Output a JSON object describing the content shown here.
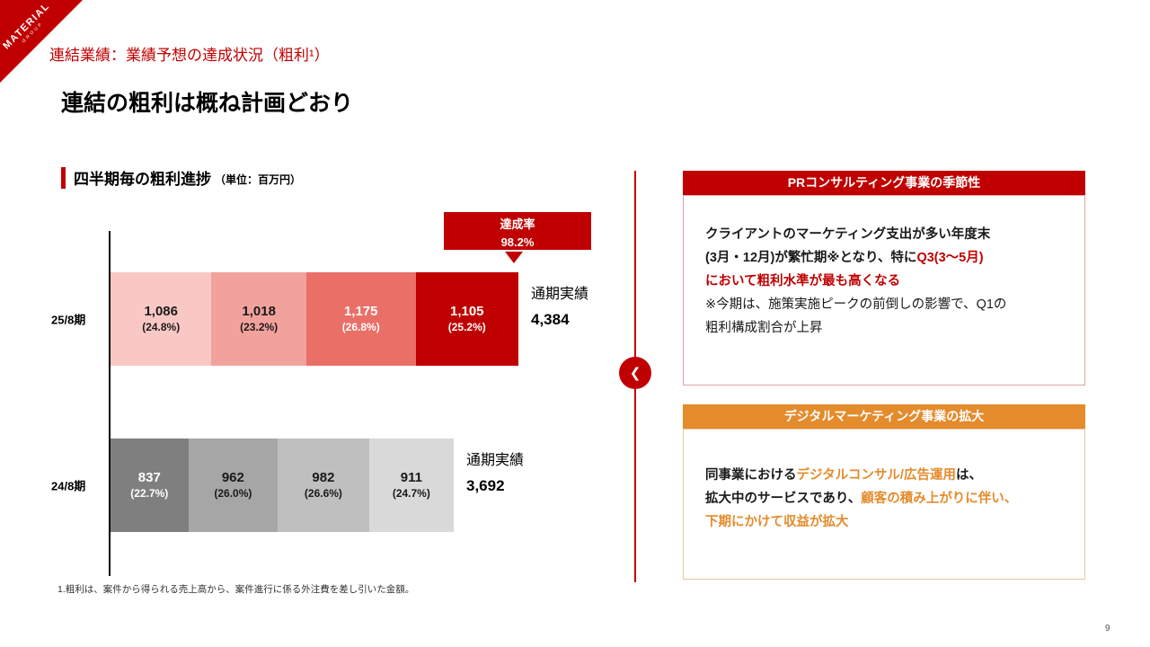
{
  "logo": {
    "name": "MATERIAL",
    "sub": "GROUP"
  },
  "page_number": "9",
  "icons": {
    "chevron_left": "❮"
  },
  "header": {
    "breadcrumb": "連結業績：業績予想の達成状況（粗利¹）",
    "title": "連結の粗利は概ね計画どおり"
  },
  "chart_section": {
    "heading": "四半期毎の粗利進捗",
    "unit_note": "（単位：百万円）",
    "achievement_badge": {
      "label": "達成率",
      "value": "98.2%"
    },
    "footnote": "1.粗利は、案件から得られる売上高から、案件進行に係る外注費を差し引いた金額。"
  },
  "chart_data": {
    "type": "bar",
    "orientation": "horizontal-stacked",
    "title": "四半期毎の粗利進捗",
    "unit": "百万円",
    "axis_max": 4384,
    "rows": [
      {
        "label": "25/8期",
        "total_label": "通期実績",
        "total_display": "4,384",
        "total_value": 4384,
        "segments": [
          {
            "display": "1,086",
            "pct": "(24.8%)",
            "value": 1086,
            "color": "#f9c8c5",
            "text_color": "#1a1a1a"
          },
          {
            "display": "1,018",
            "pct": "(23.2%)",
            "value": 1018,
            "color": "#f2a29d",
            "text_color": "#1a1a1a"
          },
          {
            "display": "1,175",
            "pct": "(26.8%)",
            "value": 1175,
            "color": "#ea6f66",
            "text_color": "#ffffff"
          },
          {
            "display": "1,105",
            "pct": "(25.2%)",
            "value": 1105,
            "color": "#c00000",
            "text_color": "#ffffff"
          }
        ]
      },
      {
        "label": "24/8期",
        "total_label": "通期実績",
        "total_display": "3,692",
        "total_value": 3692,
        "segments": [
          {
            "display": "837",
            "pct": "(22.7%)",
            "value": 837,
            "color": "#7f7f7f",
            "text_color": "#ffffff"
          },
          {
            "display": "962",
            "pct": "(26.0%)",
            "value": 962,
            "color": "#a6a6a6",
            "text_color": "#1a1a1a"
          },
          {
            "display": "982",
            "pct": "(26.6%)",
            "value": 982,
            "color": "#bfbfbf",
            "text_color": "#1a1a1a"
          },
          {
            "display": "911",
            "pct": "(24.7%)",
            "value": 911,
            "color": "#d9d9d9",
            "text_color": "#1a1a1a"
          }
        ]
      }
    ]
  },
  "callouts": [
    {
      "title": "PRコンサルティング事業の季節性",
      "accent_color": "#c00000",
      "border_color": "#e2a3a3",
      "lines": [
        [
          {
            "t": "クライアントのマーケティング支出が多い年度末",
            "c": "#1a1a1a",
            "b": true
          }
        ],
        [
          {
            "t": "(3月・12月)が繁忙期※となり、特に",
            "c": "#1a1a1a",
            "b": true
          },
          {
            "t": "Q3(3～5月)",
            "c": "#c00000",
            "b": true
          }
        ],
        [
          {
            "t": "において粗利水準が最も高くなる",
            "c": "#c00000",
            "b": true
          }
        ],
        [
          {
            "t": "※今期は、施策実施ピークの前倒しの影響で、Q1の",
            "c": "#1a1a1a",
            "b": false
          }
        ],
        [
          {
            "t": "粗利構成割合が上昇",
            "c": "#1a1a1a",
            "b": false
          }
        ]
      ]
    },
    {
      "title": "デジタルマーケティング事業の拡大",
      "accent_color": "#e48b2c",
      "border_color": "#ecc79c",
      "lines": [
        [
          {
            "t": "同事業における",
            "c": "#1a1a1a",
            "b": true
          },
          {
            "t": "デジタルコンサル/広告運用",
            "c": "#e48b2c",
            "b": true
          },
          {
            "t": "は、",
            "c": "#1a1a1a",
            "b": true
          }
        ],
        [
          {
            "t": "拡大中のサービスであり、",
            "c": "#1a1a1a",
            "b": true
          },
          {
            "t": "顧客の積み上がりに伴い、",
            "c": "#e48b2c",
            "b": true
          }
        ],
        [
          {
            "t": "下期にかけて収益が拡大",
            "c": "#e48b2c",
            "b": true
          }
        ]
      ]
    }
  ]
}
